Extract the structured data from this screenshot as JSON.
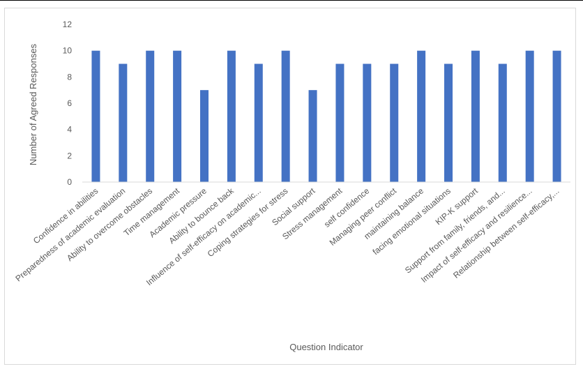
{
  "chart_data": {
    "type": "bar",
    "title": "",
    "xlabel": "Question Indicator",
    "ylabel": "Number of Agreed Responses",
    "ylim": [
      0,
      12
    ],
    "yticks": [
      0,
      2,
      4,
      6,
      8,
      10,
      12
    ],
    "grid": false,
    "legend": "none",
    "categories": [
      "Confidence in abilities",
      "Preparedness of academic evaluation",
      "Ability to overcome obstacles",
      "Time management",
      "Academic pressure",
      "Ability to bounce back",
      "Influence of self-efficacy on academic...",
      "Coping strategies for stress",
      "Social support",
      "Stress management",
      "self confidence",
      "Managing peer conflict",
      "maintaining balance",
      "facing emotional situations",
      "KIP-K support",
      "Support from family, friends, and...",
      "Impact of self-efficacy and resilience...",
      "Relationship between self-efficacy,..."
    ],
    "values": [
      10,
      9,
      10,
      10,
      7,
      10,
      9,
      10,
      7,
      9,
      9,
      9,
      10,
      9,
      10,
      9,
      10,
      10
    ],
    "colors": {
      "bar": "#4472c4",
      "axis": "#d9d9d9",
      "text": "#595959"
    }
  }
}
